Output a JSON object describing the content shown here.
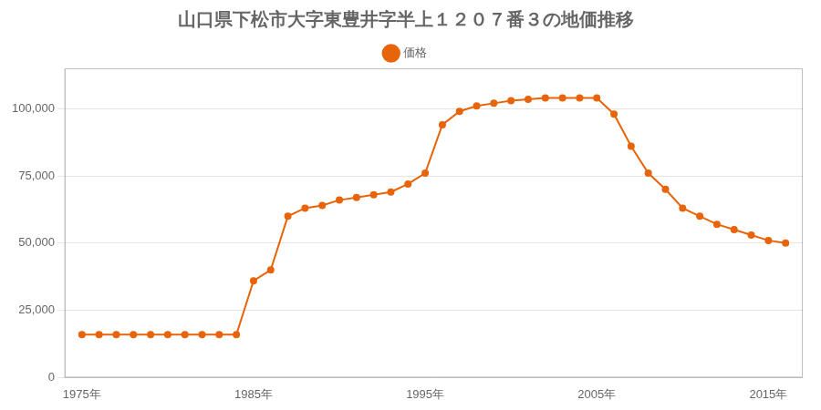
{
  "chart_data": {
    "type": "line",
    "title": "山口県下松市大字東豊井字半上１２０７番３の地価推移",
    "x": [
      1975,
      1976,
      1977,
      1978,
      1979,
      1980,
      1981,
      1982,
      1983,
      1984,
      1985,
      1986,
      1987,
      1988,
      1989,
      1990,
      1991,
      1992,
      1993,
      1994,
      1995,
      1996,
      1997,
      1998,
      1999,
      2000,
      2001,
      2002,
      2003,
      2004,
      2005,
      2006,
      2007,
      2008,
      2009,
      2010,
      2011,
      2012,
      2013,
      2014,
      2015,
      2016
    ],
    "series": [
      {
        "name": "価格",
        "color": "#e8640a",
        "marker": "circle",
        "values": [
          16000,
          16000,
          16000,
          16000,
          16000,
          16000,
          16000,
          16000,
          16000,
          16000,
          36000,
          40000,
          60000,
          63000,
          64000,
          66000,
          67000,
          68000,
          69000,
          72000,
          76000,
          94000,
          99000,
          101000,
          102000,
          103000,
          103500,
          104000,
          104000,
          104000,
          104000,
          98000,
          86000,
          76000,
          70000,
          63000,
          60000,
          57000,
          55000,
          53000,
          51000,
          50000
        ]
      }
    ],
    "xlim": [
      1974,
      2017
    ],
    "xticks": [
      {
        "value": 1975,
        "label": "1975年"
      },
      {
        "value": 1985,
        "label": "1985年"
      },
      {
        "value": 1995,
        "label": "1995年"
      },
      {
        "value": 2005,
        "label": "2005年"
      },
      {
        "value": 2015,
        "label": "2015年"
      }
    ],
    "ylim": [
      0,
      115000
    ],
    "yticks": [
      0,
      {
        "value": 25000,
        "label": "25,000"
      },
      {
        "value": 50000,
        "label": "50,000"
      },
      {
        "value": 75000,
        "label": "75,000"
      },
      {
        "value": 100000,
        "label": "100,000"
      }
    ],
    "grid": "y",
    "legend": "top"
  }
}
